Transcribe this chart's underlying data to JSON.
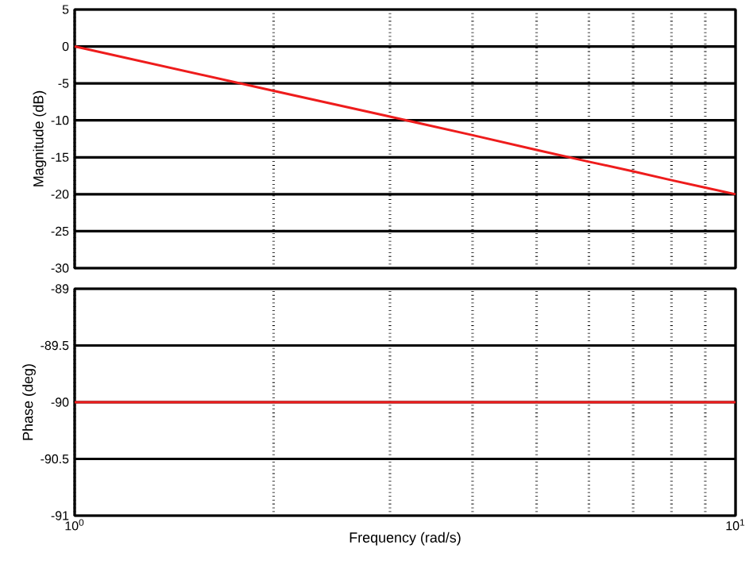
{
  "chart_data": [
    {
      "type": "line",
      "ylabel": "Magnitude (dB)",
      "log": "x",
      "grid": true,
      "tick_labels": "y",
      "xlim": [
        1,
        10
      ],
      "ylim": [
        -30,
        5
      ],
      "yticks": [
        -30,
        -25,
        -20,
        -15,
        -10,
        -5,
        0,
        5
      ],
      "series": [
        {
          "color": "#ee1c1c",
          "x": [
            1,
            2,
            3,
            4,
            5,
            6,
            7,
            8,
            9,
            10
          ],
          "values": [
            0,
            -6,
            -9.5,
            -12,
            -14,
            -15.6,
            -16.9,
            -18.1,
            -19.1,
            -20
          ]
        }
      ]
    },
    {
      "type": "line",
      "ylabel": "Phase (deg)",
      "xlabel": "Frequency  (rad/s)",
      "log": "x",
      "grid": true,
      "xlim": [
        1,
        10
      ],
      "xticks": [
        {
          "value": 1,
          "label": "10$^{0}$"
        },
        {
          "value": 10,
          "label": "10$^{1}$"
        }
      ],
      "ylim": [
        -91,
        -89
      ],
      "yticks": [
        -91,
        -90.5,
        -90,
        -89.5,
        -89
      ],
      "series": [
        {
          "color": "#ee1c1c",
          "x": [
            1,
            2,
            5,
            10
          ],
          "values": [
            -90,
            -90,
            -90,
            -90
          ]
        }
      ]
    }
  ]
}
